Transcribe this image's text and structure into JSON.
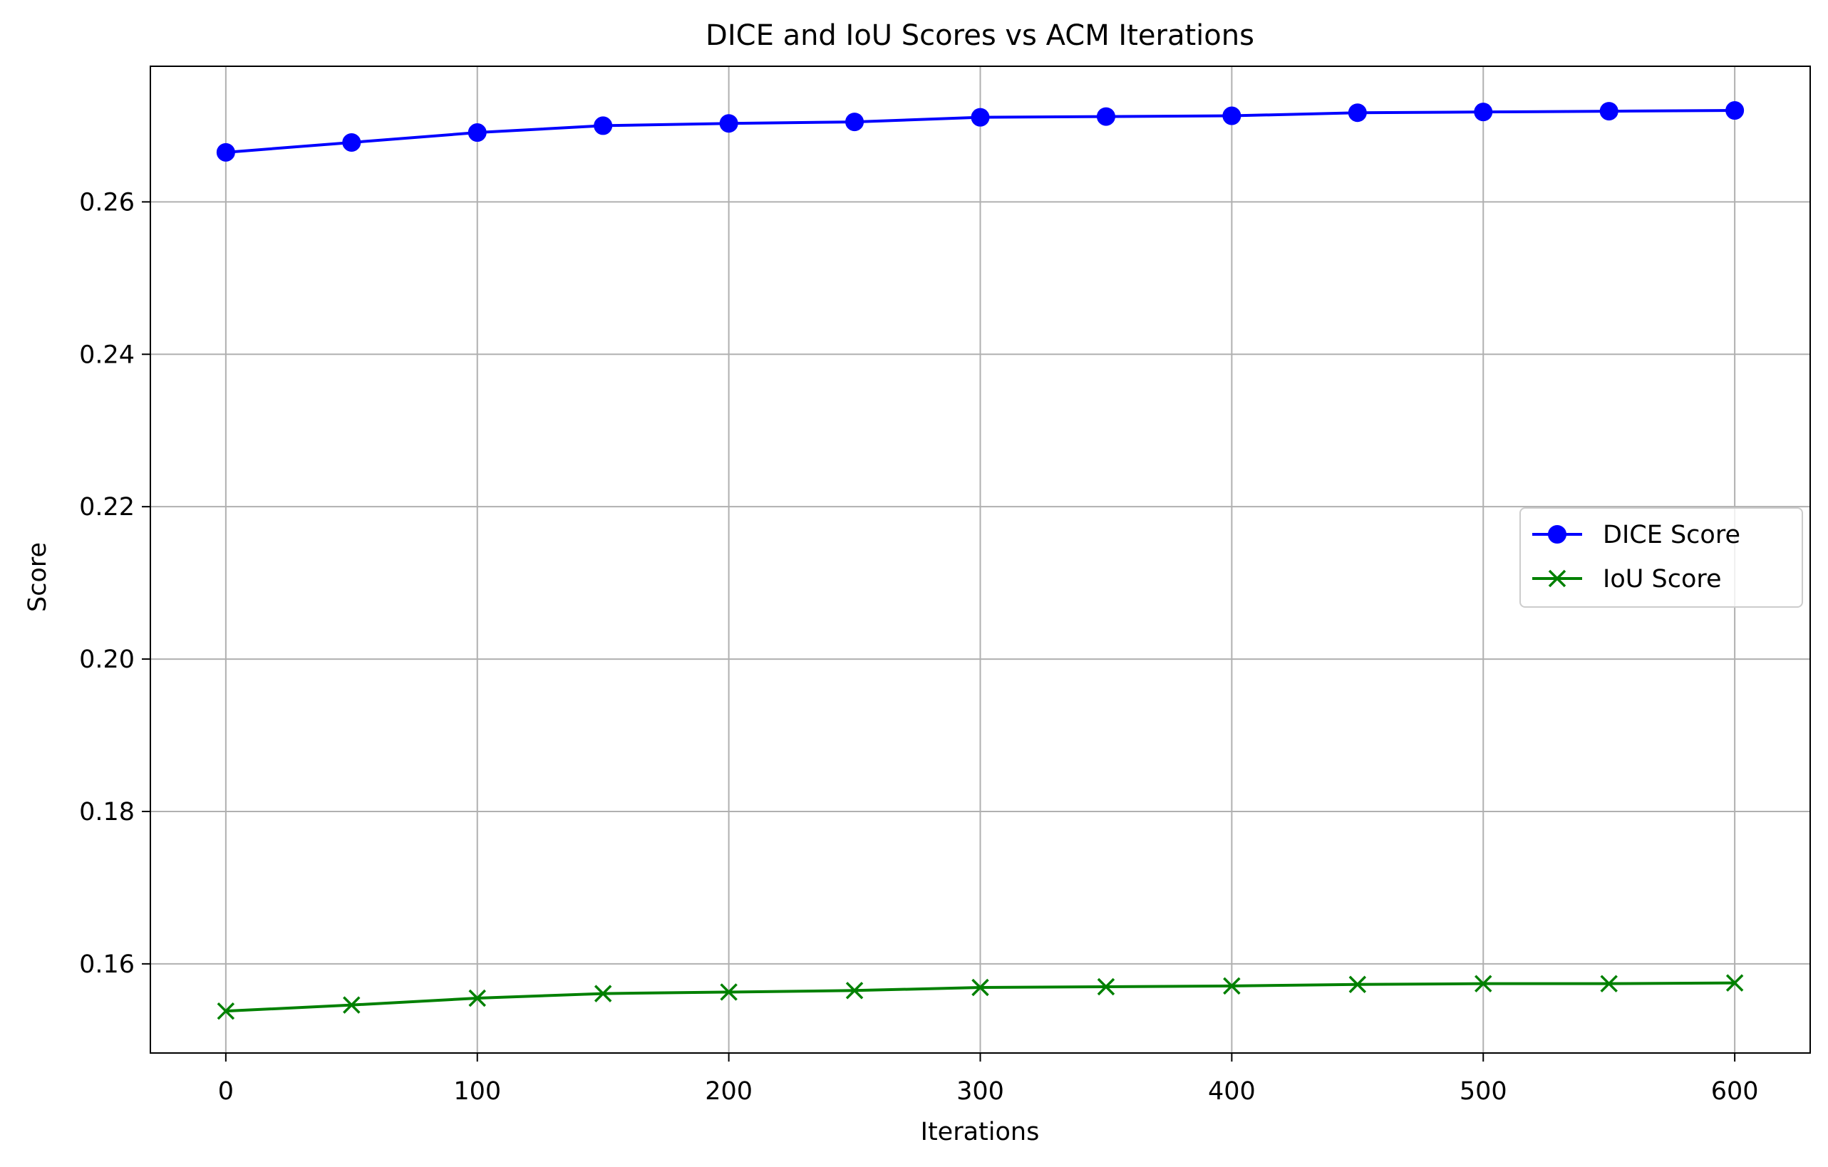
{
  "chart_data": {
    "type": "line",
    "title": "DICE and IoU Scores vs ACM Iterations",
    "xlabel": "Iterations",
    "ylabel": "Score",
    "x": [
      0,
      50,
      100,
      150,
      200,
      250,
      300,
      350,
      400,
      450,
      500,
      550,
      600
    ],
    "xlim": [
      -30,
      630
    ],
    "ylim": [
      0.1483,
      0.2778
    ],
    "xticks": [
      0,
      100,
      200,
      300,
      400,
      500,
      600
    ],
    "xtick_labels": [
      "0",
      "100",
      "200",
      "300",
      "400",
      "500",
      "600"
    ],
    "yticks": [
      0.16,
      0.18,
      0.2,
      0.22,
      0.24,
      0.26
    ],
    "ytick_labels": [
      "0.16",
      "0.18",
      "0.20",
      "0.22",
      "0.24",
      "0.26"
    ],
    "grid": true,
    "legend_position": "center-right",
    "series": [
      {
        "name": "DICE Score",
        "color": "#0000ff",
        "marker": "circle",
        "values": [
          0.2665,
          0.2678,
          0.2691,
          0.27,
          0.2703,
          0.2705,
          0.2711,
          0.2712,
          0.2713,
          0.2717,
          0.2718,
          0.2719,
          0.272
        ]
      },
      {
        "name": "IoU Score",
        "color": "#008000",
        "marker": "x",
        "values": [
          0.1538,
          0.1546,
          0.1555,
          0.1561,
          0.1563,
          0.1565,
          0.1569,
          0.157,
          0.1571,
          0.1573,
          0.1574,
          0.1574,
          0.1575
        ]
      }
    ]
  }
}
